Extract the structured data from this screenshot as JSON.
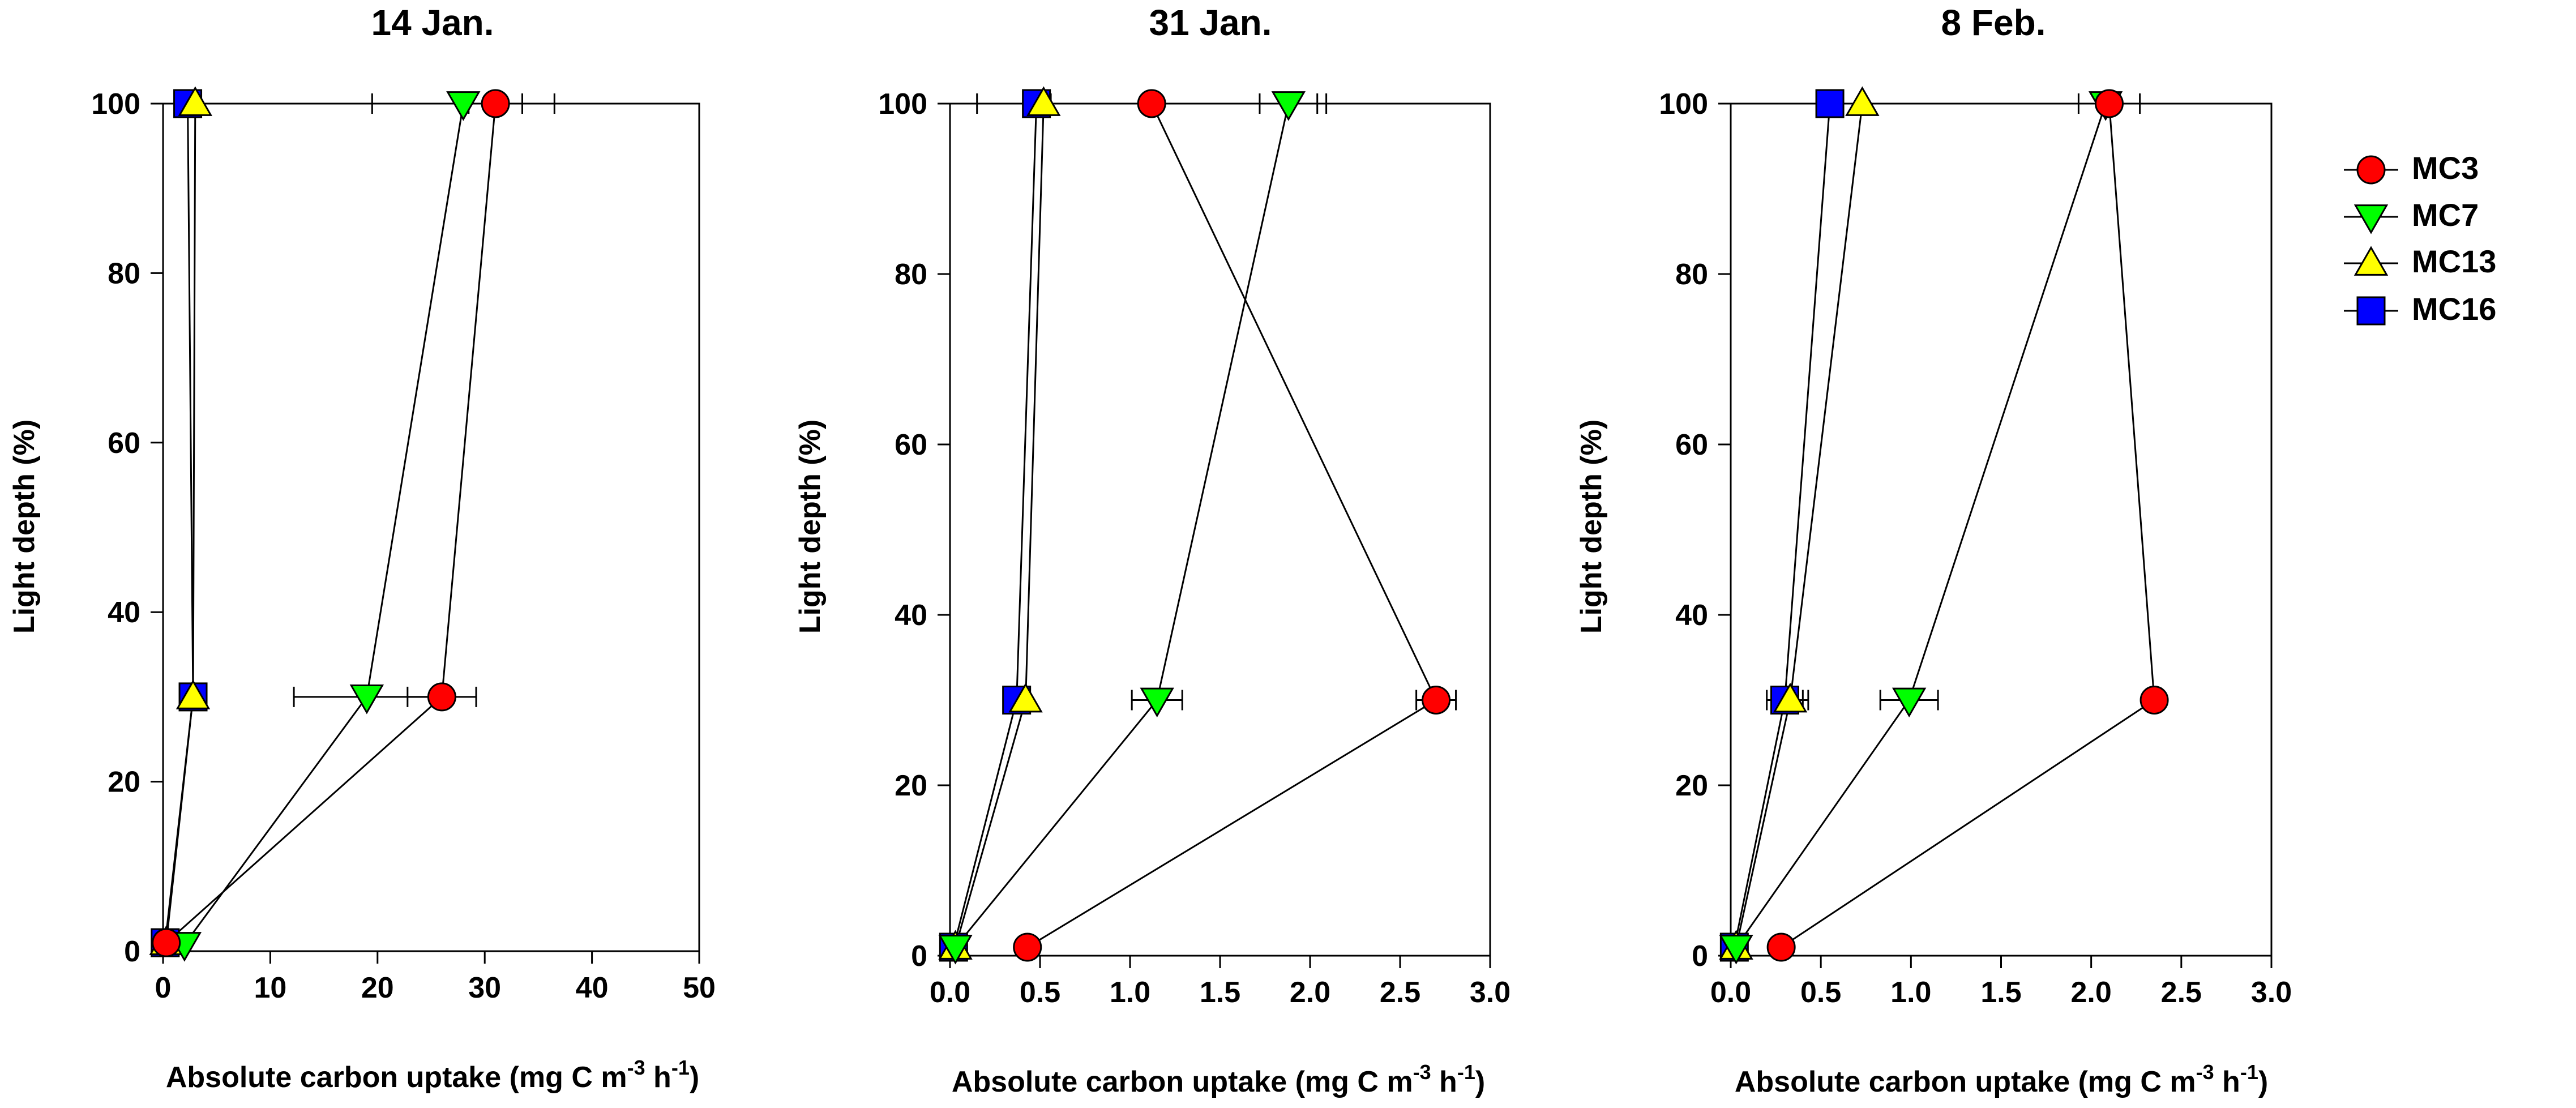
{
  "figure": {
    "legend": {
      "placement": "right",
      "entries": [
        {
          "name": "MC3",
          "marker": "circle",
          "color": "#ff0000"
        },
        {
          "name": "MC7",
          "marker": "triangle-down",
          "color": "#00ff00"
        },
        {
          "name": "MC13",
          "marker": "triangle-up",
          "color": "#ffff00"
        },
        {
          "name": "MC16",
          "marker": "square",
          "color": "#0000ff"
        }
      ]
    }
  },
  "chart_data": [
    {
      "type": "line",
      "title": "14 Jan.",
      "xlabel": "Absolute carbon uptake (mg C m",
      "xlabel_sup1": "-3",
      "xlabel_mid": " h",
      "xlabel_sup2": "-1",
      "xlabel_end": ")",
      "ylabel": "Light depth (%)",
      "xlim": [
        0,
        50
      ],
      "ylim": [
        0,
        100
      ],
      "xticks": [
        0,
        10,
        20,
        30,
        40,
        50
      ],
      "xtick_labels": [
        "0",
        "10",
        "20",
        "30",
        "40",
        "50"
      ],
      "yticks": [
        0,
        20,
        40,
        60,
        80,
        100
      ],
      "ytick_labels": [
        "0",
        "20",
        "40",
        "60",
        "80",
        "100"
      ],
      "grid": false,
      "series": [
        {
          "name": "MC3",
          "points": [
            {
              "x": 31,
              "y": 100,
              "err": 2.5
            },
            {
              "x": 26,
              "y": 30,
              "err": 3.2
            },
            {
              "x": 0.3,
              "y": 1,
              "err": 0
            }
          ]
        },
        {
          "name": "MC7",
          "points": [
            {
              "x": 28,
              "y": 100,
              "err": 8.5
            },
            {
              "x": 19,
              "y": 30,
              "err": 6.8
            },
            {
              "x": 2,
              "y": 0.8,
              "err": 0
            }
          ]
        },
        {
          "name": "MC13",
          "points": [
            {
              "x": 3,
              "y": 100,
              "err": 0.3
            },
            {
              "x": 2.8,
              "y": 30,
              "err": 0.3
            },
            {
              "x": 0.3,
              "y": 1,
              "err": 0
            }
          ]
        },
        {
          "name": "MC16",
          "points": [
            {
              "x": 2.3,
              "y": 100,
              "err": 0
            },
            {
              "x": 2.8,
              "y": 30,
              "err": 0
            },
            {
              "x": 0.2,
              "y": 1,
              "err": 0
            }
          ]
        }
      ]
    },
    {
      "type": "line",
      "title": "31 Jan.",
      "xlabel": "Absolute carbon uptake (mg C m",
      "xlabel_sup1": "-3",
      "xlabel_mid": " h",
      "xlabel_sup2": "-1",
      "xlabel_end": ")",
      "ylabel": "Light depth (%)",
      "xlim": [
        0,
        3
      ],
      "ylim": [
        0,
        100
      ],
      "xticks": [
        0,
        0.5,
        1,
        1.5,
        2,
        2.5,
        3
      ],
      "xtick_labels": [
        "0.0",
        "0.5",
        "1.0",
        "1.5",
        "2.0",
        "2.5",
        "3.0"
      ],
      "yticks": [
        0,
        20,
        40,
        60,
        80,
        100
      ],
      "ytick_labels": [
        "0",
        "20",
        "40",
        "60",
        "80",
        "100"
      ],
      "grid": false,
      "series": [
        {
          "name": "MC3",
          "points": [
            {
              "x": 1.12,
              "y": 100,
              "err": 0.97
            },
            {
              "x": 2.7,
              "y": 30,
              "err": 0.11
            },
            {
              "x": 0.43,
              "y": 1,
              "err": 0
            }
          ]
        },
        {
          "name": "MC7",
          "points": [
            {
              "x": 1.88,
              "y": 100,
              "err": 0.16
            },
            {
              "x": 1.15,
              "y": 30,
              "err": 0.14
            },
            {
              "x": 0.03,
              "y": 1,
              "err": 0
            }
          ]
        },
        {
          "name": "MC13",
          "points": [
            {
              "x": 0.52,
              "y": 100,
              "err": 0.04
            },
            {
              "x": 0.42,
              "y": 30,
              "err": 0
            },
            {
              "x": 0.03,
              "y": 1,
              "err": 0
            }
          ]
        },
        {
          "name": "MC16",
          "points": [
            {
              "x": 0.48,
              "y": 100,
              "err": 0
            },
            {
              "x": 0.37,
              "y": 30,
              "err": 0
            },
            {
              "x": 0.02,
              "y": 1,
              "err": 0
            }
          ]
        }
      ]
    },
    {
      "type": "line",
      "title": "8 Feb.",
      "xlabel": "Absolute carbon uptake (mg C m",
      "xlabel_sup1": "-3",
      "xlabel_mid": " h",
      "xlabel_sup2": "-1",
      "xlabel_end": ")",
      "ylabel": "Light depth (%)",
      "xlim": [
        0,
        3
      ],
      "ylim": [
        0,
        100
      ],
      "xticks": [
        0,
        0.5,
        1,
        1.5,
        2,
        2.5,
        3
      ],
      "xtick_labels": [
        "0.0",
        "0.5",
        "1.0",
        "1.5",
        "2.0",
        "2.5",
        "3.0"
      ],
      "yticks": [
        0,
        20,
        40,
        60,
        80,
        100
      ],
      "ytick_labels": [
        "0",
        "20",
        "40",
        "60",
        "80",
        "100"
      ],
      "grid": false,
      "series": [
        {
          "name": "MC3",
          "points": [
            {
              "x": 2.1,
              "y": 100,
              "err": 0.17
            },
            {
              "x": 2.35,
              "y": 30,
              "err": 0.04
            },
            {
              "x": 0.28,
              "y": 1,
              "err": 0
            }
          ]
        },
        {
          "name": "MC7",
          "points": [
            {
              "x": 2.08,
              "y": 100,
              "err": 0
            },
            {
              "x": 0.99,
              "y": 30,
              "err": 0.16
            },
            {
              "x": 0.03,
              "y": 1,
              "err": 0
            }
          ]
        },
        {
          "name": "MC13",
          "points": [
            {
              "x": 0.73,
              "y": 100,
              "err": 0
            },
            {
              "x": 0.33,
              "y": 30,
              "err": 0.1
            },
            {
              "x": 0.03,
              "y": 1,
              "err": 0
            }
          ]
        },
        {
          "name": "MC16",
          "points": [
            {
              "x": 0.55,
              "y": 100,
              "err": 0
            },
            {
              "x": 0.3,
              "y": 30,
              "err": 0.1
            },
            {
              "x": 0.02,
              "y": 1,
              "err": 0
            }
          ]
        }
      ]
    }
  ]
}
